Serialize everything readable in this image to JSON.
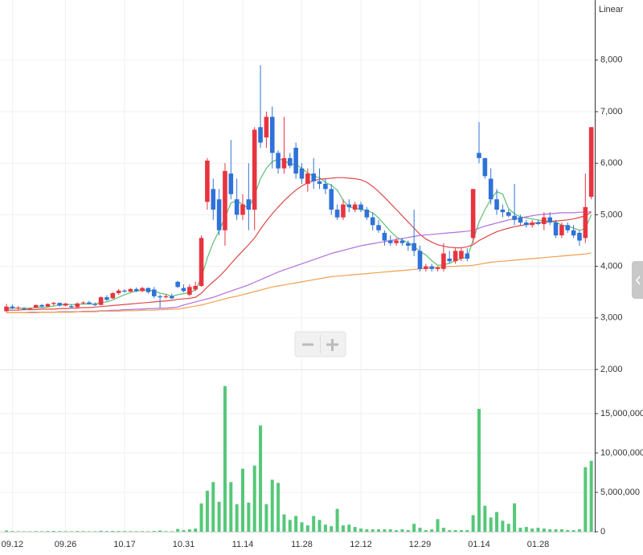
{
  "chart_data": {
    "type": "candlestick",
    "scale_label": "Linear",
    "log_scale": false,
    "grid": true,
    "up_color": "#e8343f",
    "down_color": "#2f72d8",
    "volume_color": "#55c878",
    "categories": [
      null,
      "09.12",
      null,
      null,
      null,
      null,
      null,
      null,
      null,
      null,
      "09.26",
      null,
      null,
      null,
      null,
      null,
      null,
      null,
      null,
      null,
      "10.17",
      null,
      null,
      null,
      null,
      null,
      null,
      null,
      null,
      null,
      "10.31",
      null,
      null,
      null,
      null,
      null,
      null,
      null,
      null,
      null,
      "11.14",
      null,
      null,
      null,
      null,
      null,
      null,
      null,
      null,
      null,
      "11.28",
      null,
      null,
      null,
      null,
      null,
      null,
      null,
      null,
      null,
      "12.12",
      null,
      null,
      null,
      null,
      null,
      null,
      null,
      null,
      null,
      "12.29",
      null,
      null,
      null,
      null,
      null,
      null,
      null,
      null,
      null,
      "01.14",
      null,
      null,
      null,
      null,
      null,
      null,
      null,
      null,
      null,
      "01.28",
      null,
      null,
      null,
      null,
      null,
      null,
      null,
      null,
      null
    ],
    "ohlc": [
      [
        3130,
        3270,
        3110,
        3220
      ],
      [
        3220,
        3260,
        3170,
        3190
      ],
      [
        3190,
        3230,
        3160,
        3200
      ],
      [
        3180,
        3210,
        3150,
        3170
      ],
      [
        3170,
        3190,
        3150,
        3180
      ],
      [
        3200,
        3260,
        3190,
        3250
      ],
      [
        3250,
        3270,
        3200,
        3220
      ],
      [
        3220,
        3280,
        3210,
        3270
      ],
      [
        3270,
        3310,
        3240,
        3290
      ],
      [
        3290,
        3300,
        3220,
        3240
      ],
      [
        3240,
        3290,
        3220,
        3280
      ],
      [
        3230,
        3260,
        3190,
        3210
      ],
      [
        3210,
        3300,
        3200,
        3280
      ],
      [
        3290,
        3320,
        3260,
        3300
      ],
      [
        3300,
        3330,
        3260,
        3270
      ],
      [
        3270,
        3300,
        3230,
        3250
      ],
      [
        3250,
        3420,
        3250,
        3400
      ],
      [
        3400,
        3440,
        3330,
        3350
      ],
      [
        3380,
        3500,
        3370,
        3480
      ],
      [
        3480,
        3560,
        3450,
        3530
      ],
      [
        3530,
        3560,
        3490,
        3510
      ],
      [
        3510,
        3580,
        3500,
        3560
      ],
      [
        3560,
        3590,
        3500,
        3520
      ],
      [
        3520,
        3600,
        3500,
        3580
      ],
      [
        3580,
        3590,
        3470,
        3500
      ],
      [
        3550,
        3600,
        3380,
        3420
      ],
      [
        3420,
        3450,
        3200,
        3400
      ],
      [
        3400,
        3460,
        3380,
        3420
      ],
      [
        3420,
        3470,
        3360,
        3380
      ],
      [
        3700,
        3720,
        3580,
        3600
      ],
      [
        3580,
        3650,
        3500,
        3520
      ],
      [
        3450,
        3650,
        3420,
        3600
      ],
      [
        3550,
        3700,
        3520,
        3620
      ],
      [
        3620,
        4600,
        3600,
        4550
      ],
      [
        5250,
        6100,
        5100,
        6050
      ],
      [
        5500,
        5700,
        4900,
        5100
      ],
      [
        5300,
        5500,
        4600,
        4700
      ],
      [
        4700,
        6000,
        4400,
        5850
      ],
      [
        5800,
        6450,
        5300,
        5400
      ],
      [
        5300,
        5700,
        4900,
        5000
      ],
      [
        5000,
        5400,
        4900,
        5200
      ],
      [
        5300,
        6000,
        4700,
        5100
      ],
      [
        5100,
        6700,
        4700,
        6650
      ],
      [
        6700,
        7900,
        6300,
        6400
      ],
      [
        6500,
        7000,
        6300,
        6900
      ],
      [
        6900,
        7100,
        5900,
        6200
      ],
      [
        6200,
        6250,
        5800,
        5900
      ],
      [
        5900,
        6900,
        5800,
        6100
      ],
      [
        6100,
        6200,
        5900,
        5950
      ],
      [
        6300,
        6400,
        5700,
        5800
      ],
      [
        5900,
        6000,
        5600,
        5700
      ],
      [
        5600,
        5900,
        5450,
        5800
      ],
      [
        5800,
        6100,
        5500,
        5650
      ],
      [
        5650,
        5900,
        5500,
        5600
      ],
      [
        5600,
        5700,
        5400,
        5500
      ],
      [
        5500,
        5600,
        5000,
        5100
      ],
      [
        5100,
        5200,
        4900,
        4950
      ],
      [
        4950,
        5300,
        4900,
        5200
      ],
      [
        5200,
        5300,
        5050,
        5150
      ],
      [
        5100,
        5250,
        5050,
        5200
      ],
      [
        5200,
        5250,
        5050,
        5100
      ],
      [
        5100,
        5150,
        4900,
        4950
      ],
      [
        4950,
        5050,
        4700,
        4800
      ],
      [
        4800,
        4900,
        4650,
        4700
      ],
      [
        4650,
        4700,
        4400,
        4500
      ],
      [
        4500,
        4600,
        4400,
        4450
      ],
      [
        4450,
        4550,
        4400,
        4500
      ],
      [
        4500,
        4550,
        4400,
        4450
      ],
      [
        4450,
        4500,
        4300,
        4400
      ],
      [
        4450,
        5100,
        4200,
        4300
      ],
      [
        4300,
        4400,
        3900,
        3950
      ],
      [
        3950,
        4050,
        3900,
        4000
      ],
      [
        4000,
        4050,
        3900,
        3950
      ],
      [
        3950,
        4000,
        3900,
        3980
      ],
      [
        3950,
        4450,
        3900,
        4250
      ],
      [
        4150,
        4300,
        4050,
        4100
      ],
      [
        4100,
        4350,
        4050,
        4300
      ],
      [
        4150,
        4350,
        4100,
        4300
      ],
      [
        4250,
        4350,
        4100,
        4150
      ],
      [
        4550,
        5500,
        4450,
        5500
      ],
      [
        6200,
        6800,
        6000,
        6100
      ],
      [
        6100,
        6100,
        5700,
        5750
      ],
      [
        5700,
        5900,
        5200,
        5300
      ],
      [
        5300,
        5500,
        5000,
        5100
      ],
      [
        5100,
        5200,
        4950,
        5050
      ],
      [
        5050,
        5100,
        4950,
        4980
      ],
      [
        4980,
        5600,
        4800,
        4900
      ],
      [
        4950,
        5000,
        4800,
        4850
      ],
      [
        4850,
        4900,
        4750,
        4800
      ],
      [
        4800,
        4900,
        4750,
        4850
      ],
      [
        4850,
        4900,
        4800,
        4820
      ],
      [
        4820,
        5050,
        4700,
        4950
      ],
      [
        4950,
        5050,
        4800,
        4850
      ],
      [
        4850,
        4900,
        4550,
        4600
      ],
      [
        4600,
        4850,
        4550,
        4800
      ],
      [
        4800,
        4850,
        4650,
        4700
      ],
      [
        4700,
        4800,
        4550,
        4600
      ],
      [
        4650,
        4700,
        4400,
        4500
      ],
      [
        4550,
        5800,
        4450,
        5150
      ],
      [
        5350,
        6700,
        5300,
        6700
      ]
    ],
    "lines": [
      {
        "color": "#5cc070",
        "values": [
          3180,
          3190,
          3190,
          3190,
          3190,
          3200,
          3200,
          3210,
          3230,
          3250,
          3260,
          3260,
          3260,
          3270,
          3270,
          3270,
          3300,
          3310,
          3350,
          3400,
          3450,
          3490,
          3520,
          3540,
          3540,
          3520,
          3480,
          3460,
          3420,
          3450,
          3470,
          3490,
          3540,
          3780,
          4160,
          4460,
          4690,
          4940,
          5230,
          5270,
          5200,
          5120,
          5380,
          5700,
          5900,
          6030,
          6080,
          6060,
          5980,
          5980,
          5900,
          5810,
          5750,
          5720,
          5630,
          5570,
          5480,
          5280,
          5150,
          5130,
          5100,
          5080,
          5040,
          4940,
          4810,
          4680,
          4570,
          4510,
          4460,
          4390,
          4290,
          4220,
          4110,
          4020,
          4030,
          4060,
          4110,
          4150,
          4180,
          4500,
          4860,
          5100,
          5300,
          5450,
          5400,
          5120,
          5020,
          4960,
          4940,
          4920,
          4900,
          4880,
          4870,
          4860,
          4800,
          4780,
          4740,
          4700,
          4730,
          5000
        ]
      },
      {
        "color": "#e04848",
        "values": [
          3150,
          3150,
          3150,
          3160,
          3160,
          3160,
          3170,
          3170,
          3170,
          3180,
          3180,
          3190,
          3190,
          3200,
          3200,
          3210,
          3220,
          3230,
          3240,
          3250,
          3260,
          3270,
          3280,
          3290,
          3300,
          3310,
          3320,
          3330,
          3340,
          3360,
          3370,
          3380,
          3400,
          3480,
          3600,
          3700,
          3800,
          3920,
          4050,
          4180,
          4300,
          4420,
          4550,
          4720,
          4880,
          5020,
          5150,
          5270,
          5380,
          5480,
          5560,
          5620,
          5660,
          5690,
          5700,
          5710,
          5720,
          5720,
          5710,
          5700,
          5680,
          5630,
          5550,
          5450,
          5340,
          5220,
          5100,
          4980,
          4860,
          4740,
          4620,
          4530,
          4470,
          4420,
          4390,
          4370,
          4360,
          4360,
          4380,
          4420,
          4500,
          4560,
          4620,
          4670,
          4710,
          4740,
          4770,
          4790,
          4810,
          4830,
          4850,
          4860,
          4870,
          4880,
          4890,
          4900,
          4920,
          4950,
          4980,
          5050
        ]
      },
      {
        "color": "#b070e0",
        "values": [
          3100,
          3100,
          3100,
          3100,
          3110,
          3110,
          3110,
          3110,
          3110,
          3120,
          3120,
          3120,
          3120,
          3130,
          3130,
          3130,
          3140,
          3140,
          3150,
          3150,
          3160,
          3160,
          3170,
          3170,
          3180,
          3180,
          3190,
          3190,
          3200,
          3210,
          3250,
          3280,
          3310,
          3340,
          3370,
          3400,
          3440,
          3480,
          3520,
          3560,
          3600,
          3640,
          3690,
          3740,
          3790,
          3840,
          3890,
          3930,
          3970,
          4010,
          4050,
          4090,
          4130,
          4170,
          4210,
          4250,
          4280,
          4310,
          4340,
          4370,
          4400,
          4420,
          4440,
          4460,
          4480,
          4500,
          4520,
          4540,
          4560,
          4580,
          4600,
          4610,
          4620,
          4630,
          4640,
          4650,
          4660,
          4670,
          4680,
          4700,
          4740,
          4780,
          4810,
          4840,
          4870,
          4900,
          4920,
          4940,
          4960,
          4980,
          5000,
          5010,
          5020,
          5030,
          5040,
          5040,
          5040,
          5050,
          5050,
          5060
        ]
      },
      {
        "color": "#f0a050",
        "values": [
          3100,
          3100,
          3100,
          3100,
          3100,
          3100,
          3110,
          3110,
          3110,
          3110,
          3110,
          3110,
          3120,
          3120,
          3120,
          3120,
          3130,
          3130,
          3130,
          3130,
          3140,
          3140,
          3140,
          3150,
          3150,
          3150,
          3160,
          3160,
          3170,
          3170,
          3190,
          3210,
          3230,
          3250,
          3280,
          3310,
          3340,
          3370,
          3400,
          3420,
          3450,
          3480,
          3510,
          3540,
          3570,
          3600,
          3620,
          3640,
          3660,
          3680,
          3700,
          3720,
          3740,
          3760,
          3780,
          3800,
          3810,
          3820,
          3830,
          3840,
          3850,
          3860,
          3870,
          3880,
          3890,
          3900,
          3910,
          3920,
          3930,
          3940,
          3950,
          3960,
          3970,
          3980,
          3990,
          4000,
          4000,
          4010,
          4010,
          4020,
          4040,
          4060,
          4080,
          4090,
          4100,
          4110,
          4120,
          4130,
          4140,
          4150,
          4160,
          4170,
          4180,
          4190,
          4200,
          4210,
          4220,
          4230,
          4240,
          4260
        ]
      }
    ],
    "volume": [
      150000,
      80000,
      60000,
      50000,
      50000,
      70000,
      60000,
      80000,
      100000,
      70000,
      60000,
      50000,
      80000,
      70000,
      50000,
      60000,
      120000,
      80000,
      100000,
      90000,
      80000,
      70000,
      60000,
      70000,
      60000,
      100000,
      150000,
      70000,
      60000,
      350000,
      200000,
      300000,
      400000,
      3600000,
      5200000,
      6300000,
      3800000,
      18500000,
      6300000,
      3500000,
      8000000,
      3700000,
      8400000,
      13500000,
      3500000,
      6600000,
      6200000,
      2200000,
      1500000,
      2000000,
      1200000,
      800000,
      2000000,
      1500000,
      900000,
      700000,
      2900000,
      800000,
      900000,
      600000,
      400000,
      300000,
      300000,
      300000,
      300000,
      300000,
      200000,
      300000,
      200000,
      1000000,
      500000,
      200000,
      300000,
      1600000,
      500000,
      200000,
      200000,
      200000,
      200000,
      2100000,
      15600000,
      3300000,
      1800000,
      2500000,
      1400000,
      1000000,
      3600000,
      500000,
      600000,
      400000,
      500000,
      400000,
      300000,
      300000,
      300000,
      200000,
      200000,
      300000,
      8200000,
      9000000
    ],
    "ylim": [
      2000,
      9010
    ],
    "yticks": [
      {
        "value": 2000,
        "label": "2,000"
      },
      {
        "value": 3000,
        "label": "3,000"
      },
      {
        "value": 4000,
        "label": "4,000"
      },
      {
        "value": 5000,
        "label": "5,000"
      },
      {
        "value": 6000,
        "label": "6,000"
      },
      {
        "value": 7000,
        "label": "7,000"
      },
      {
        "value": 8000,
        "label": "8,000"
      }
    ],
    "y2lim": [
      0,
      20300000
    ],
    "y2ticks": [
      0,
      {
        "value": 5000000,
        "label": "5,000,000"
      },
      {
        "value": 10000000,
        "label": "10,000,000"
      },
      {
        "value": 15000000,
        "label": "15,000,000"
      }
    ]
  }
}
